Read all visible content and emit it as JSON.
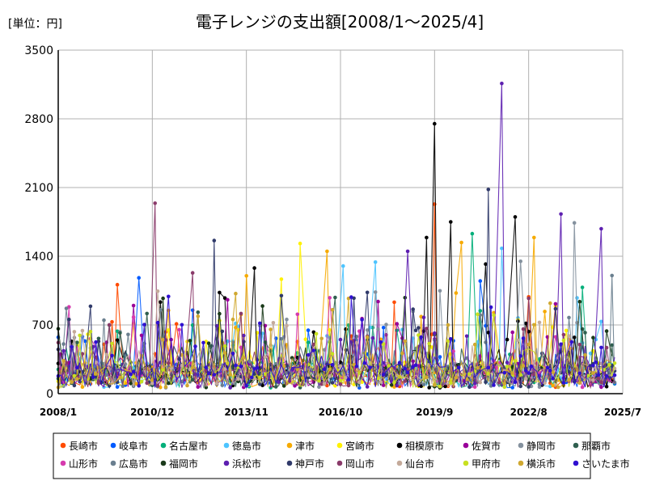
{
  "chart_data": {
    "type": "line",
    "title": "電子レンジの支出額[2008/1～2025/4]",
    "unit_label": "[単位：円]",
    "xlabel": "",
    "ylabel": "",
    "x_start": "2008/1",
    "x_end": "2025/7",
    "x_ticks": [
      "2008/1",
      "2010/12",
      "2013/11",
      "2016/10",
      "2019/9",
      "2022/8",
      "2025/7"
    ],
    "ylim": [
      0,
      3500
    ],
    "y_ticks": [
      0,
      700,
      1400,
      2100,
      2800,
      3500
    ],
    "grid": true,
    "legend_position": "bottom",
    "series": [
      {
        "name": "長崎市",
        "color": "#ff4b00"
      },
      {
        "name": "岐阜市",
        "color": "#005aff"
      },
      {
        "name": "名古屋市",
        "color": "#03af7a"
      },
      {
        "name": "徳島市",
        "color": "#4dc4ff"
      },
      {
        "name": "津市",
        "color": "#f6aa00"
      },
      {
        "name": "宮崎市",
        "color": "#fff100"
      },
      {
        "name": "相模原市",
        "color": "#000000"
      },
      {
        "name": "佐賀市",
        "color": "#990099"
      },
      {
        "name": "静岡市",
        "color": "#84919e"
      },
      {
        "name": "那覇市",
        "color": "#2f5f4f"
      },
      {
        "name": "山形市",
        "color": "#d63aae"
      },
      {
        "name": "広島市",
        "color": "#6a7f8f"
      },
      {
        "name": "福岡市",
        "color": "#1a3a1a"
      },
      {
        "name": "浜松市",
        "color": "#5d1fb0"
      },
      {
        "name": "神戸市",
        "color": "#303a6a"
      },
      {
        "name": "岡山市",
        "color": "#8a3a6a"
      },
      {
        "name": "仙台市",
        "color": "#c4aa9a"
      },
      {
        "name": "甲府市",
        "color": "#c8e020"
      },
      {
        "name": "横浜市",
        "color": "#d0a830"
      },
      {
        "name": "さいたま市",
        "color": "#3010d0"
      }
    ],
    "peaks": [
      {
        "series": "浜松市",
        "x": "2021/10",
        "y": 3160
      },
      {
        "series": "相模原市",
        "x": "2019/9",
        "y": 2750
      },
      {
        "series": "岡山市",
        "x": "2011/1",
        "y": 1940
      },
      {
        "series": "長崎市",
        "x": "2019/9",
        "y": 1930
      },
      {
        "series": "神戸市",
        "x": "2021/5",
        "y": 2080
      },
      {
        "series": "相模原市",
        "x": "2022/3",
        "y": 1800
      },
      {
        "series": "浜松市",
        "x": "2023/8",
        "y": 1830
      },
      {
        "series": "静岡市",
        "x": "2024/1",
        "y": 1740
      },
      {
        "series": "浜松市",
        "x": "2024/11",
        "y": 1680
      },
      {
        "series": "相模原市",
        "x": "2020/3",
        "y": 1750
      },
      {
        "series": "名古屋市",
        "x": "2020/11",
        "y": 1630
      },
      {
        "series": "津市",
        "x": "2022/10",
        "y": 1590
      },
      {
        "series": "津市",
        "x": "2020/7",
        "y": 1540
      },
      {
        "series": "神戸市",
        "x": "2012/11",
        "y": 1560
      },
      {
        "series": "宮崎市",
        "x": "2015/7",
        "y": 1530
      },
      {
        "series": "相模原市",
        "x": "2019/6",
        "y": 1590
      },
      {
        "series": "浜松市",
        "x": "2018/11",
        "y": 1450
      },
      {
        "series": "津市",
        "x": "2016/5",
        "y": 1450
      },
      {
        "series": "徳島市",
        "x": "2021/10",
        "y": 1480
      },
      {
        "series": "徳島市",
        "x": "2017/11",
        "y": 1340
      },
      {
        "series": "相模原市",
        "x": "2014/2",
        "y": 1280
      },
      {
        "series": "徳島市",
        "x": "2016/11",
        "y": 1300
      },
      {
        "series": "相模原市",
        "x": "2021/4",
        "y": 1320
      },
      {
        "series": "岐阜市",
        "x": "2010/7",
        "y": 1180
      },
      {
        "series": "長崎市",
        "x": "2009/11",
        "y": 1110
      },
      {
        "series": "岡山市",
        "x": "2012/3",
        "y": 1230
      },
      {
        "series": "津市",
        "x": "2013/11",
        "y": 1200
      }
    ]
  }
}
